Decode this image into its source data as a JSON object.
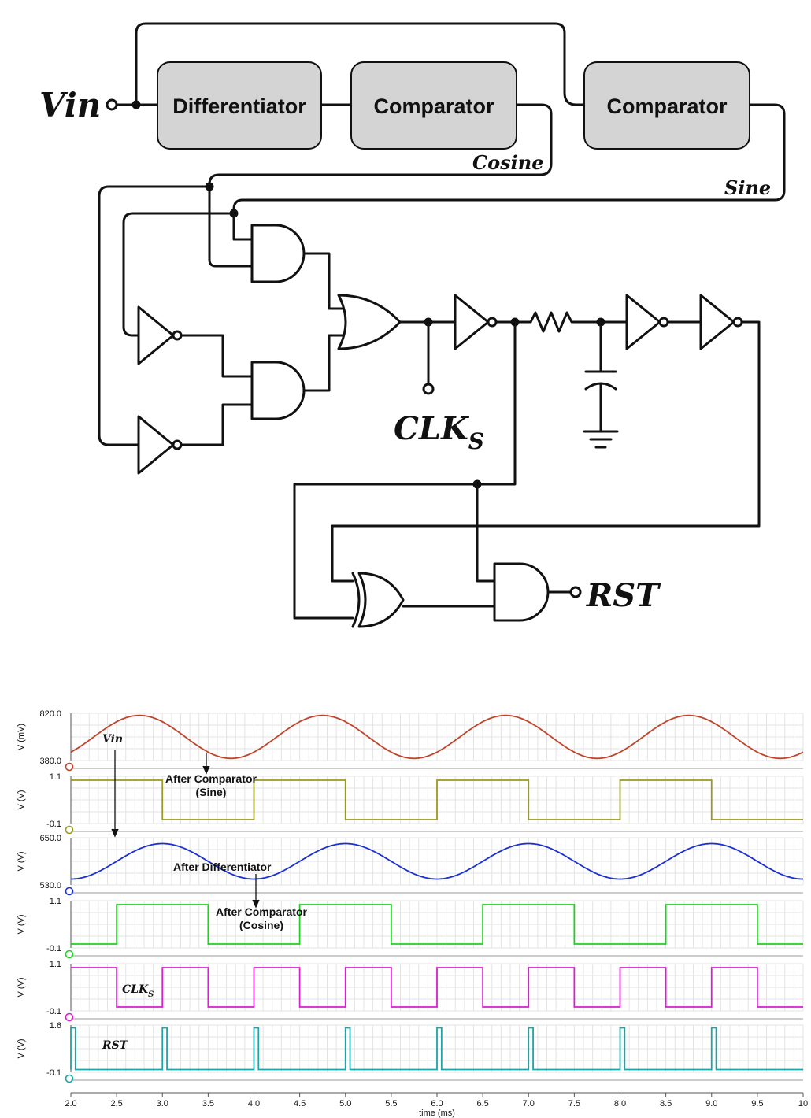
{
  "schematic": {
    "input_label": "Vin",
    "blocks": {
      "differentiator": "Differentiator",
      "comparator_cos": "Comparator",
      "comparator_sin": "Comparator"
    },
    "signals": {
      "cosine": "Cosine",
      "sine": "Sine",
      "clk_main": "CLK",
      "clk_sub": "S",
      "rst": "RST"
    }
  },
  "chart_data": {
    "type": "line",
    "xlabel": "time (ms)",
    "x_ticks": [
      "2.0",
      "2.5",
      "3.0",
      "3.5",
      "4.0",
      "4.5",
      "5.0",
      "5.5",
      "6.0",
      "6.5",
      "7.0",
      "7.5",
      "8.0",
      "8.5",
      "9.0",
      "9.5",
      "10"
    ],
    "xlim": [
      2.0,
      10.0
    ],
    "grid": true,
    "panels": [
      {
        "name": "vin",
        "ylabel": "V (mV)",
        "ymax_label": "820.0",
        "ymin_label": "380.0",
        "ylim": [
          380,
          820
        ],
        "color": "#c0442b",
        "kind": "sine",
        "period_ms": 2.0,
        "peak_ms": 2.75,
        "amp": 200,
        "offset": 600
      },
      {
        "name": "sine",
        "ylabel": "V (V)",
        "ymax_label": "1.1",
        "ymin_label": "-0.1",
        "ylim": [
          -0.1,
          1.1
        ],
        "color": "#9a9a1e",
        "kind": "square",
        "period_ms": 2.0,
        "high_start_ms": 2.0,
        "duty": 0.5,
        "high": 1.0,
        "low": 0.0
      },
      {
        "name": "diff",
        "ylabel": "V (V)",
        "ymax_label": "650.0",
        "ymin_label": "530.0",
        "ylim": [
          530,
          650
        ],
        "color": "#1a2fd6",
        "kind": "sine",
        "period_ms": 2.0,
        "peak_ms": 3.0,
        "amp": 45,
        "offset": 590
      },
      {
        "name": "cosine",
        "ylabel": "V (V)",
        "ymax_label": "1.1",
        "ymin_label": "-0.1",
        "ylim": [
          -0.1,
          1.1
        ],
        "color": "#20d020",
        "kind": "square",
        "period_ms": 2.0,
        "high_start_ms": 2.5,
        "duty": 0.5,
        "high": 1.0,
        "low": 0.0
      },
      {
        "name": "clks",
        "ylabel": "V (V)",
        "ymax_label": "1.1",
        "ymin_label": "-0.1",
        "ylim": [
          -0.1,
          1.1
        ],
        "color": "#d81fd0",
        "kind": "square",
        "period_ms": 1.0,
        "high_start_ms": 2.0,
        "duty": 0.5,
        "high": 1.0,
        "low": 0.0
      },
      {
        "name": "rst",
        "ylabel": "V (V)",
        "ymax_label": "1.6",
        "ymin_label": "-0.1",
        "ylim": [
          -0.1,
          1.6
        ],
        "color": "#1aa6a6",
        "kind": "pulse",
        "period_ms": 1.0,
        "pulse_start_ms": 2.0,
        "pulse_width_ms": 0.05,
        "high": 1.5,
        "low": 0.0
      }
    ],
    "annotations": {
      "vin": "Vin",
      "after_comp_sine_1": "After Comparator",
      "after_comp_sine_2": "(Sine)",
      "after_diff": "After Differentiator",
      "after_comp_cos_1": "After Comparator",
      "after_comp_cos_2": "(Cosine)",
      "clk_main": "CLK",
      "clk_sub": "S",
      "rst": "RST"
    }
  }
}
